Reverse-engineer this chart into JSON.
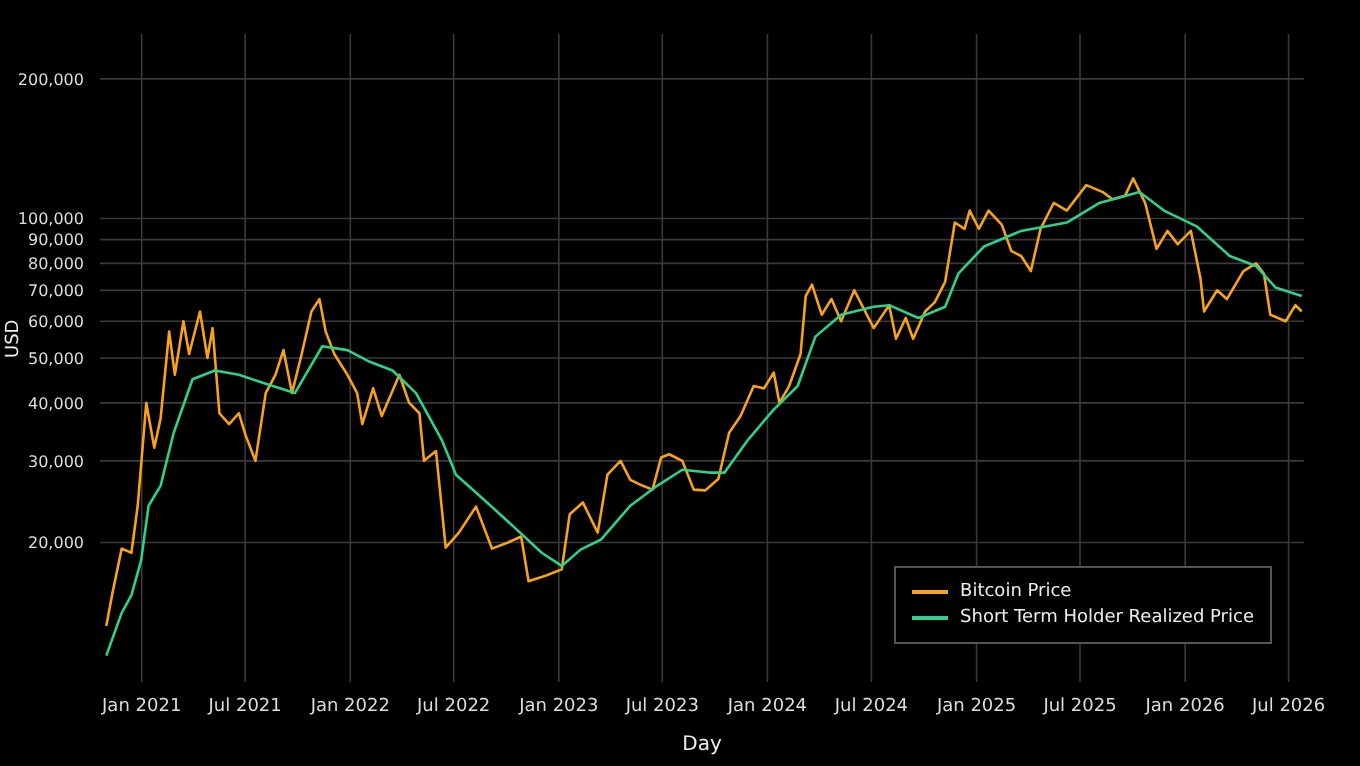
{
  "chart_data": {
    "type": "line",
    "xlabel": "Day",
    "ylabel": "USD",
    "log": "y",
    "grid": true,
    "legend": "bottom right",
    "marker": "none",
    "line_style": "solid",
    "xlim": [
      "2020-10-20",
      "2026-07-28"
    ],
    "xticks": [
      {
        "value": "2021-01",
        "label": "Jan 2021"
      },
      {
        "value": "2021-07",
        "label": "Jul 2021"
      },
      {
        "value": "2022-01",
        "label": "Jan 2022"
      },
      {
        "value": "2022-07",
        "label": "Jul 2022"
      },
      {
        "value": "2023-01",
        "label": "Jan 2023"
      },
      {
        "value": "2023-07",
        "label": "Jul 2023"
      },
      {
        "value": "2024-01",
        "label": "Jan 2024"
      },
      {
        "value": "2024-07",
        "label": "Jul 2024"
      },
      {
        "value": "2025-01",
        "label": "Jan 2025"
      },
      {
        "value": "2025-07",
        "label": "Jul 2025"
      },
      {
        "value": "2026-01",
        "label": "Jan 2026"
      },
      {
        "value": "2026-07",
        "label": "Jul 2026"
      }
    ],
    "ylim": [
      10000,
      250000
    ],
    "yticks": [
      {
        "value": 20000,
        "label": "20,000"
      },
      {
        "value": 30000,
        "label": "30,000"
      },
      {
        "value": 40000,
        "label": "40,000"
      },
      {
        "value": 50000,
        "label": "50,000"
      },
      {
        "value": 60000,
        "label": "60,000"
      },
      {
        "value": 70000,
        "label": "70,000"
      },
      {
        "value": 80000,
        "label": "80,000"
      },
      {
        "value": 90000,
        "label": "90,000"
      },
      {
        "value": 100000,
        "label": "100,000"
      },
      {
        "value": 200000,
        "label": "200,000"
      }
    ],
    "series": [
      {
        "name": "Bitcoin Price",
        "color": "#f7a21b",
        "x": [
          "2020-10-31",
          "2020-11-11",
          "2020-11-27",
          "2020-12-14",
          "2020-12-25",
          "2021-01-09",
          "2021-01-23",
          "2021-02-03",
          "2021-02-18",
          "2021-02-28",
          "2021-03-15",
          "2021-03-25",
          "2021-04-13",
          "2021-04-26",
          "2021-05-05",
          "2021-05-17",
          "2021-06-03",
          "2021-06-20",
          "2021-07-02",
          "2021-07-19",
          "2021-08-06",
          "2021-08-23",
          "2021-09-06",
          "2021-09-21",
          "2021-10-08",
          "2021-10-25",
          "2021-11-08",
          "2021-11-19",
          "2021-12-04",
          "2021-12-27",
          "2022-01-13",
          "2022-01-22",
          "2022-02-10",
          "2022-02-25",
          "2022-03-28",
          "2022-04-14",
          "2022-05-02",
          "2022-05-10",
          "2022-05-31",
          "2022-06-17",
          "2022-07-10",
          "2022-08-09",
          "2022-09-06",
          "2022-10-04",
          "2022-10-27",
          "2022-11-09",
          "2022-12-11",
          "2023-01-06",
          "2023-01-20",
          "2023-02-12",
          "2023-03-10",
          "2023-03-27",
          "2023-04-19",
          "2023-05-06",
          "2023-05-28",
          "2023-06-14",
          "2023-06-29",
          "2023-07-13",
          "2023-08-05",
          "2023-08-25",
          "2023-09-14",
          "2023-10-07",
          "2023-10-26",
          "2023-11-15",
          "2023-12-08",
          "2023-12-26",
          "2024-01-12",
          "2024-01-22",
          "2024-02-08",
          "2024-02-28",
          "2024-03-08",
          "2024-03-19",
          "2024-04-05",
          "2024-04-22",
          "2024-05-09",
          "2024-06-01",
          "2024-07-05",
          "2024-08-01",
          "2024-08-13",
          "2024-08-30",
          "2024-09-12",
          "2024-10-03",
          "2024-10-20",
          "2024-11-07",
          "2024-11-24",
          "2024-12-11",
          "2024-12-20",
          "2025-01-05",
          "2025-01-22",
          "2025-02-14",
          "2025-03-03",
          "2025-03-20",
          "2025-04-06",
          "2025-04-23",
          "2025-05-16",
          "2025-06-08",
          "2025-07-12",
          "2025-08-10",
          "2025-08-27",
          "2025-09-18",
          "2025-10-02",
          "2025-10-23",
          "2025-11-12",
          "2025-12-01",
          "2025-12-19",
          "2026-01-11",
          "2026-01-28",
          "2026-02-03",
          "2026-02-26",
          "2026-03-15",
          "2026-04-13",
          "2026-05-05",
          "2026-05-19",
          "2026-05-30",
          "2026-06-26",
          "2026-07-13",
          "2026-07-24"
        ],
        "values": [
          13200,
          15600,
          19400,
          19000,
          24000,
          40000,
          32000,
          37000,
          57000,
          46000,
          60000,
          51000,
          63000,
          50000,
          58000,
          38000,
          36000,
          38000,
          34000,
          30000,
          42000,
          46000,
          52000,
          42000,
          51000,
          63000,
          67000,
          57000,
          51000,
          46000,
          42000,
          36000,
          43000,
          37500,
          46000,
          40000,
          38000,
          30000,
          31500,
          19500,
          21000,
          23900,
          19400,
          20000,
          20600,
          16500,
          17000,
          17500,
          23000,
          24400,
          21000,
          28000,
          30000,
          27300,
          26500,
          26000,
          30500,
          31000,
          30000,
          26000,
          25900,
          27400,
          34500,
          37500,
          43500,
          43000,
          46500,
          40000,
          43500,
          51000,
          68000,
          72000,
          62000,
          67000,
          60000,
          70000,
          58000,
          65000,
          55000,
          61000,
          55000,
          63000,
          66000,
          73000,
          98000,
          95000,
          104000,
          95000,
          104000,
          97000,
          85000,
          83000,
          77000,
          95000,
          108000,
          104000,
          118000,
          114000,
          110000,
          112000,
          122000,
          108000,
          86000,
          94000,
          88000,
          94000,
          74000,
          63000,
          70000,
          67000,
          77000,
          80000,
          76000,
          62000,
          60000,
          65000,
          63000
        ]
      },
      {
        "name": "Short Term Holder Realized Price",
        "color": "#2fd08a",
        "x": [
          "2020-10-31",
          "2020-11-27",
          "2020-12-14",
          "2020-12-31",
          "2021-01-13",
          "2021-02-03",
          "2021-02-26",
          "2021-03-31",
          "2021-05-09",
          "2021-06-20",
          "2021-08-06",
          "2021-09-26",
          "2021-11-13",
          "2021-12-27",
          "2022-02-05",
          "2022-03-16",
          "2022-04-26",
          "2022-06-10",
          "2022-07-05",
          "2022-08-22",
          "2022-10-18",
          "2022-12-02",
          "2023-01-06",
          "2023-02-08",
          "2023-03-16",
          "2023-05-06",
          "2023-06-22",
          "2023-08-05",
          "2023-09-20",
          "2023-10-18",
          "2023-11-28",
          "2024-01-12",
          "2024-02-23",
          "2024-03-25",
          "2024-05-09",
          "2024-07-05",
          "2024-08-01",
          "2024-09-21",
          "2024-11-07",
          "2024-11-30",
          "2025-01-14",
          "2025-03-20",
          "2025-06-08",
          "2025-08-04",
          "2025-10-13",
          "2025-11-25",
          "2026-01-22",
          "2026-03-20",
          "2026-05-05",
          "2026-06-08",
          "2026-07-24"
        ],
        "values": [
          11400,
          14100,
          15400,
          18300,
          24000,
          26500,
          34500,
          45000,
          47000,
          46000,
          44000,
          42000,
          53000,
          52000,
          49000,
          47000,
          42000,
          33300,
          28000,
          24800,
          21400,
          19000,
          17800,
          19300,
          20300,
          24000,
          26500,
          28700,
          28300,
          28300,
          33300,
          38700,
          43500,
          55600,
          62000,
          64500,
          65000,
          61000,
          64500,
          76000,
          87000,
          94000,
          98000,
          108000,
          114000,
          104000,
          96000,
          83000,
          79000,
          71000,
          68000
        ]
      }
    ]
  }
}
